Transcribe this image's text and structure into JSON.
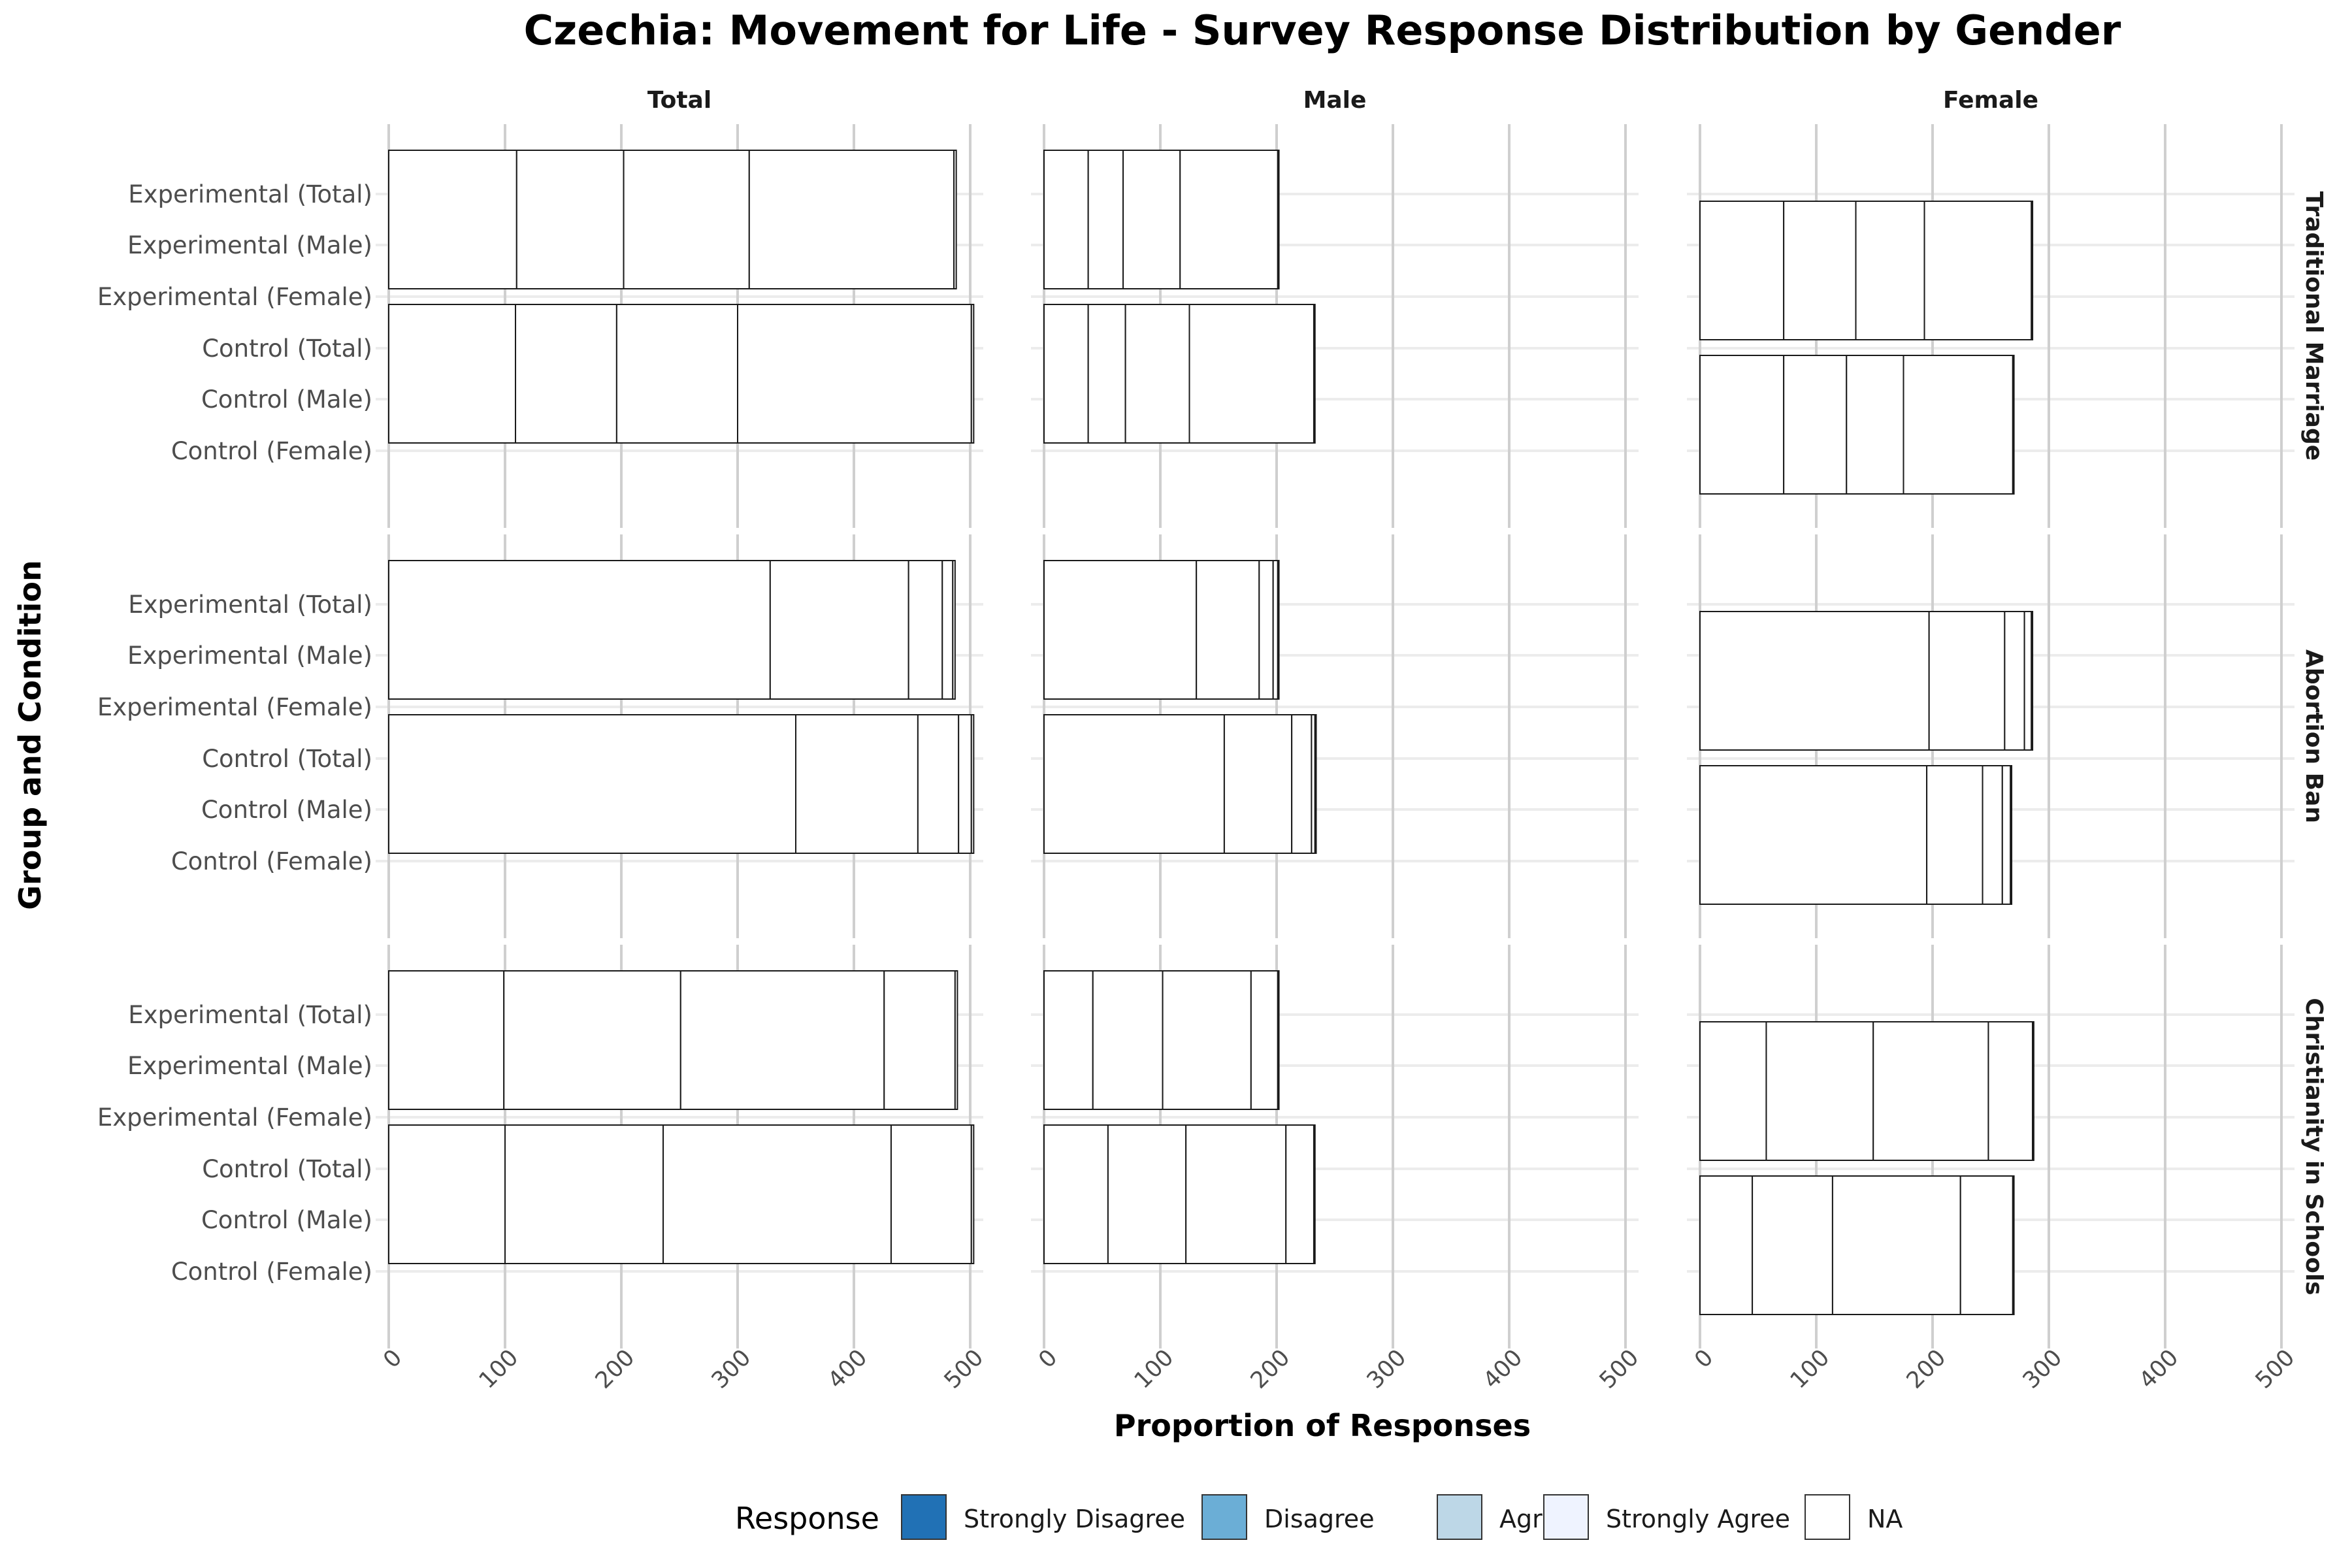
{
  "chart_data": {
    "type": "bar",
    "orientation": "horizontal",
    "stacked": true,
    "title": "Czechia: Movement for Life - Survey Response Distribution by Gender",
    "xlabel": "Proportion of Responses",
    "ylabel": "Group and Condition",
    "xlim": [
      0,
      500
    ],
    "x_ticks": [
      0,
      100,
      200,
      300,
      400,
      500
    ],
    "grid": true,
    "legend_position": "bottom",
    "legend": {
      "title": "Response",
      "entries": [
        {
          "label": "Strongly Disagree",
          "color": "#2171b5"
        },
        {
          "label": "Disagree",
          "color": "#6baed6"
        },
        {
          "label": "Agree",
          "color": "#bdd7e7"
        },
        {
          "label": "Strongly Agree",
          "color": "#eff3ff"
        },
        {
          "label": "NA",
          "color": "#ffffff"
        }
      ]
    },
    "columns": [
      "Total",
      "Male",
      "Female"
    ],
    "rows": [
      "Traditional Marriage",
      "Abortion Ban",
      "Christianity in Schools"
    ],
    "categories": [
      "Experimental (Total)",
      "Experimental (Male)",
      "Experimental (Female)",
      "Control (Total)",
      "Control (Male)",
      "Control (Female)"
    ],
    "segment_order": [
      "Strongly Disagree",
      "Disagree",
      "Agree",
      "Strongly Agree",
      "NA"
    ],
    "panels": [
      {
        "row": "Traditional Marriage",
        "column": "Total",
        "bars": [
          {
            "label": "Experimental",
            "segments": [
              110,
              92,
              108,
              176,
              2
            ]
          },
          {
            "label": "Control",
            "segments": [
              109,
              87,
              104,
              201,
              2
            ]
          }
        ]
      },
      {
        "row": "Traditional Marriage",
        "column": "Male",
        "bars": [
          {
            "label": "Experimental",
            "segments": [
              38,
              30,
              49,
              84,
              1
            ]
          },
          {
            "label": "Control",
            "segments": [
              38,
              32,
              55,
              107,
              1
            ]
          }
        ]
      },
      {
        "row": "Traditional Marriage",
        "column": "Female",
        "bars": [
          {
            "label": "Experimental",
            "segments": [
              72,
              62,
              59,
              92,
              1
            ]
          },
          {
            "label": "Control",
            "segments": [
              72,
              54,
              49,
              94,
              1
            ]
          }
        ]
      },
      {
        "row": "Abortion Ban",
        "column": "Total",
        "bars": [
          {
            "label": "Experimental",
            "segments": [
              328,
              119,
              29,
              9,
              2
            ]
          },
          {
            "label": "Control",
            "segments": [
              350,
              105,
              35,
              11,
              2
            ]
          }
        ]
      },
      {
        "row": "Abortion Ban",
        "column": "Male",
        "bars": [
          {
            "label": "Experimental",
            "segments": [
              131,
              54,
              12,
              4,
              1
            ]
          },
          {
            "label": "Control",
            "segments": [
              155,
              58,
              17,
              3,
              1
            ]
          }
        ]
      },
      {
        "row": "Abortion Ban",
        "column": "Female",
        "bars": [
          {
            "label": "Experimental",
            "segments": [
              197,
              65,
              17,
              6,
              1
            ]
          },
          {
            "label": "Control",
            "segments": [
              195,
              48,
              17,
              7,
              1
            ]
          }
        ]
      },
      {
        "row": "Christianity in Schools",
        "column": "Total",
        "bars": [
          {
            "label": "Experimental",
            "segments": [
              99,
              152,
              175,
              61,
              2
            ]
          },
          {
            "label": "Control",
            "segments": [
              100,
              136,
              196,
              69,
              2
            ]
          }
        ]
      },
      {
        "row": "Christianity in Schools",
        "column": "Male",
        "bars": [
          {
            "label": "Experimental",
            "segments": [
              42,
              60,
              76,
              23,
              1
            ]
          },
          {
            "label": "Control",
            "segments": [
              55,
              67,
              86,
              24,
              1
            ]
          }
        ]
      },
      {
        "row": "Christianity in Schools",
        "column": "Female",
        "bars": [
          {
            "label": "Experimental",
            "segments": [
              57,
              92,
              99,
              38,
              1
            ]
          },
          {
            "label": "Control",
            "segments": [
              45,
              69,
              110,
              45,
              1
            ]
          }
        ]
      }
    ]
  }
}
